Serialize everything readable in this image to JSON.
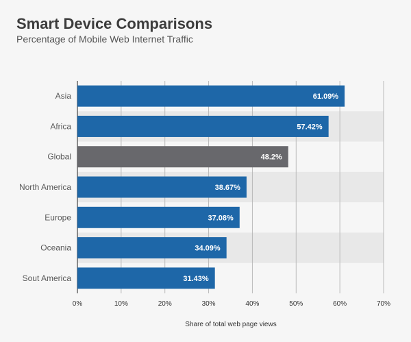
{
  "chart_data": {
    "type": "bar",
    "orientation": "horizontal",
    "title": "Smart Device Comparisons",
    "subtitle": "Percentage of Mobile Web Internet Traffic",
    "xlabel": "Share of total web page views",
    "ylabel": "",
    "categories": [
      "Asia",
      "Africa",
      "Global",
      "North America",
      "Europe",
      "Oceania",
      "Sout America"
    ],
    "values": [
      61.09,
      57.42,
      48.2,
      38.67,
      37.08,
      34.09,
      31.43
    ],
    "value_labels": [
      "61.09%",
      "57.42%",
      "48.2%",
      "38.67%",
      "37.08%",
      "34.09%",
      "31.43%"
    ],
    "xlim": [
      0,
      70
    ],
    "ticks": [
      0,
      10,
      20,
      30,
      40,
      50,
      60,
      70
    ],
    "tick_labels": [
      "0%",
      "10%",
      "20%",
      "30%",
      "40%",
      "50%",
      "60%",
      "70%"
    ],
    "grid": "vertical",
    "band_shading": "alternating rows",
    "highlight_category": "Global",
    "colors": {
      "bar": "#1e67a8",
      "highlight_bar": "#68686c",
      "band": "#e8e8e8",
      "grid": "#b9b9b9",
      "background": "#f6f6f6"
    }
  }
}
